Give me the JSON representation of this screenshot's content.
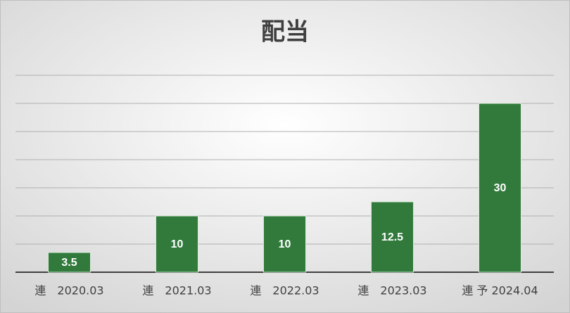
{
  "chart_data": {
    "type": "bar",
    "title": "配当",
    "categories": [
      "連　2020.03",
      "連　2021.03",
      "連　2022.03",
      "連　2023.03",
      "連 予 2024.04"
    ],
    "values": [
      3.5,
      10,
      10,
      12.5,
      30
    ],
    "color": "#317a3c",
    "ylim": [
      0,
      35
    ],
    "yticks": [
      0,
      5,
      10,
      15,
      20,
      25,
      30,
      35
    ],
    "grid": true
  }
}
